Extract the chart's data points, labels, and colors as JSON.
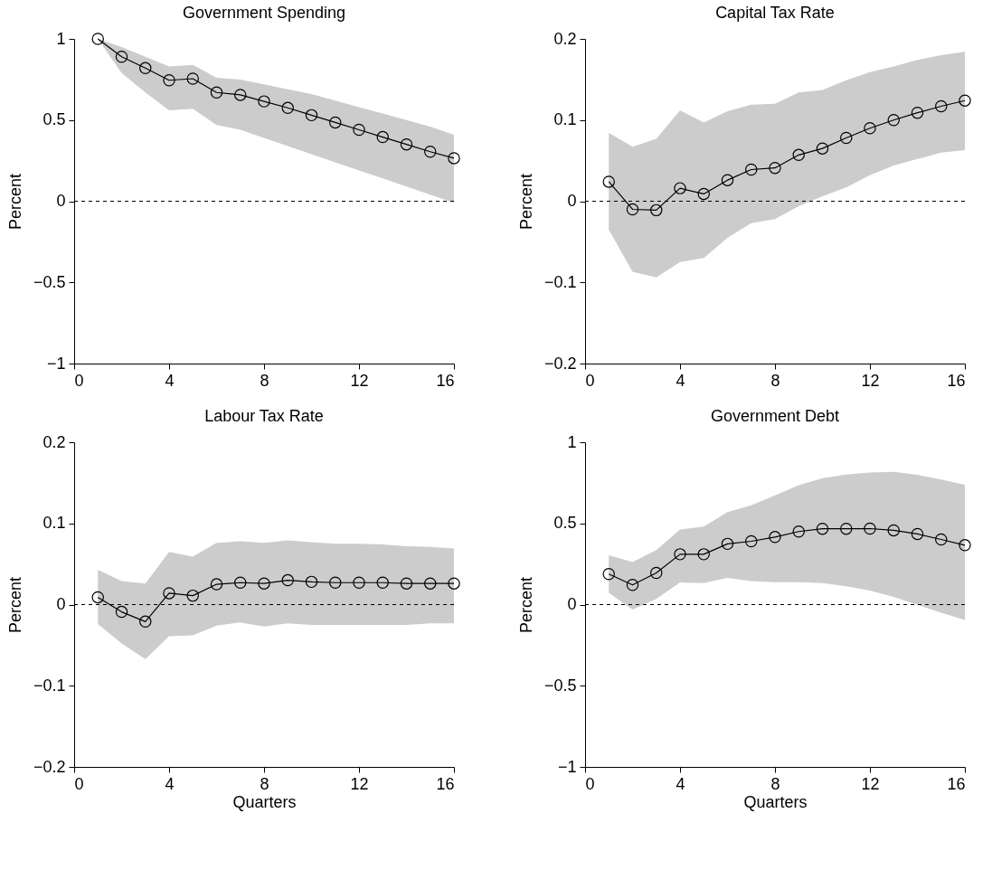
{
  "chart_data": [
    {
      "type": "line",
      "title": "Government Spending",
      "ylabel": "Percent",
      "x": [
        1,
        2,
        3,
        4,
        5,
        6,
        7,
        8,
        9,
        10,
        11,
        12,
        13,
        14,
        15,
        16
      ],
      "xlim": [
        0,
        16
      ],
      "xticks": [
        0,
        4,
        8,
        12,
        16
      ],
      "ylim": [
        -1,
        1
      ],
      "yticks": [
        {
          "value": -1,
          "label": "−1"
        },
        {
          "value": -0.5,
          "label": "−0.5"
        },
        0,
        0.5,
        1
      ],
      "marker": "circle",
      "grid": false,
      "ref_lines": [
        {
          "axis": "y",
          "value": 0,
          "line_style": "dashed"
        }
      ],
      "series": [
        {
          "color": "#000000",
          "values": [
            1.0,
            0.89,
            0.82,
            0.745,
            0.755,
            0.67,
            0.655,
            0.615,
            0.575,
            0.53,
            0.485,
            0.44,
            0.395,
            0.35,
            0.305,
            0.265
          ],
          "upper": [
            1.0,
            0.95,
            0.89,
            0.83,
            0.84,
            0.76,
            0.75,
            0.72,
            0.69,
            0.66,
            0.62,
            0.58,
            0.54,
            0.5,
            0.46,
            0.41
          ],
          "lower": [
            1.0,
            0.79,
            0.67,
            0.56,
            0.57,
            0.47,
            0.44,
            0.39,
            0.34,
            0.29,
            0.24,
            0.19,
            0.14,
            0.09,
            0.04,
            -0.01
          ]
        }
      ]
    },
    {
      "type": "line",
      "title": "Capital Tax Rate",
      "ylabel": "Percent",
      "x": [
        1,
        2,
        3,
        4,
        5,
        6,
        7,
        8,
        9,
        10,
        11,
        12,
        13,
        14,
        15,
        16
      ],
      "xlim": [
        0,
        16
      ],
      "xticks": [
        0,
        4,
        8,
        12,
        16
      ],
      "ylim": [
        -0.2,
        0.2
      ],
      "yticks": [
        {
          "value": -0.2,
          "label": "−0.2"
        },
        {
          "value": -0.1,
          "label": "−0.1"
        },
        0,
        0.1,
        0.2
      ],
      "marker": "circle",
      "grid": false,
      "ref_lines": [
        {
          "axis": "y",
          "value": 0,
          "line_style": "dashed"
        }
      ],
      "series": [
        {
          "color": "#000000",
          "values": [
            0.024,
            -0.01,
            -0.011,
            0.016,
            0.009,
            0.026,
            0.039,
            0.041,
            0.057,
            0.065,
            0.078,
            0.09,
            0.1,
            0.109,
            0.117,
            0.124
          ],
          "upper": [
            0.084,
            0.067,
            0.077,
            0.112,
            0.097,
            0.111,
            0.119,
            0.12,
            0.134,
            0.137,
            0.149,
            0.159,
            0.166,
            0.174,
            0.18,
            0.184
          ],
          "lower": [
            -0.035,
            -0.087,
            -0.094,
            -0.075,
            -0.07,
            -0.045,
            -0.027,
            -0.022,
            -0.006,
            0.006,
            0.017,
            0.032,
            0.044,
            0.052,
            0.06,
            0.063
          ]
        }
      ]
    },
    {
      "type": "line",
      "title": "Labour Tax Rate",
      "ylabel": "Percent",
      "xlabel": "Quarters",
      "x": [
        1,
        2,
        3,
        4,
        5,
        6,
        7,
        8,
        9,
        10,
        11,
        12,
        13,
        14,
        15,
        16
      ],
      "xlim": [
        0,
        16
      ],
      "xticks": [
        0,
        4,
        8,
        12,
        16
      ],
      "ylim": [
        -0.2,
        0.2
      ],
      "yticks": [
        {
          "value": -0.2,
          "label": "−0.2"
        },
        {
          "value": -0.1,
          "label": "−0.1"
        },
        0,
        0.1,
        0.2
      ],
      "marker": "circle",
      "grid": false,
      "ref_lines": [
        {
          "axis": "y",
          "value": 0,
          "line_style": "dashed"
        }
      ],
      "series": [
        {
          "color": "#000000",
          "values": [
            0.009,
            -0.009,
            -0.021,
            0.014,
            0.011,
            0.025,
            0.027,
            0.026,
            0.03,
            0.028,
            0.027,
            0.027,
            0.027,
            0.026,
            0.026,
            0.026
          ],
          "upper": [
            0.043,
            0.029,
            0.026,
            0.065,
            0.059,
            0.076,
            0.078,
            0.076,
            0.079,
            0.077,
            0.075,
            0.075,
            0.074,
            0.072,
            0.071,
            0.069
          ],
          "lower": [
            -0.024,
            -0.048,
            -0.067,
            -0.039,
            -0.038,
            -0.026,
            -0.022,
            -0.027,
            -0.023,
            -0.025,
            -0.025,
            -0.025,
            -0.025,
            -0.025,
            -0.023,
            -0.023
          ]
        }
      ]
    },
    {
      "type": "line",
      "title": "Government Debt",
      "ylabel": "Percent",
      "xlabel": "Quarters",
      "x": [
        1,
        2,
        3,
        4,
        5,
        6,
        7,
        8,
        9,
        10,
        11,
        12,
        13,
        14,
        15,
        16
      ],
      "xlim": [
        0,
        16
      ],
      "xticks": [
        0,
        4,
        8,
        12,
        16
      ],
      "ylim": [
        -1,
        1
      ],
      "yticks": [
        {
          "value": -1,
          "label": "−1"
        },
        {
          "value": -0.5,
          "label": "−0.5"
        },
        0,
        0.5,
        1
      ],
      "marker": "circle",
      "grid": false,
      "ref_lines": [
        {
          "axis": "y",
          "value": 0,
          "line_style": "dashed"
        }
      ],
      "series": [
        {
          "color": "#000000",
          "values": [
            0.188,
            0.121,
            0.195,
            0.31,
            0.31,
            0.374,
            0.39,
            0.416,
            0.45,
            0.467,
            0.467,
            0.468,
            0.457,
            0.435,
            0.401,
            0.366
          ],
          "upper": [
            0.303,
            0.262,
            0.336,
            0.463,
            0.48,
            0.569,
            0.612,
            0.673,
            0.736,
            0.779,
            0.801,
            0.814,
            0.818,
            0.799,
            0.77,
            0.738
          ],
          "lower": [
            0.072,
            -0.03,
            0.035,
            0.136,
            0.132,
            0.164,
            0.145,
            0.138,
            0.138,
            0.132,
            0.113,
            0.086,
            0.048,
            -0.002,
            -0.05,
            -0.095
          ]
        }
      ]
    }
  ]
}
